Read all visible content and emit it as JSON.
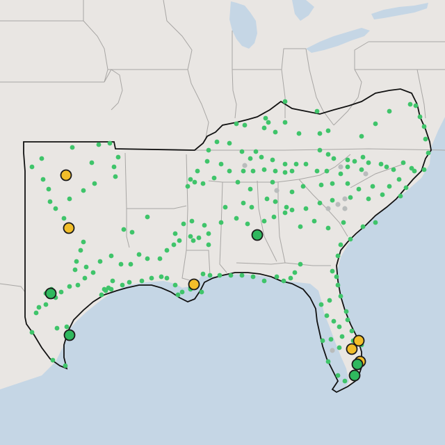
{
  "map": {
    "type": "point-map",
    "basemap": "light-gray-terrain",
    "colors": {
      "land": "#e9e6e3",
      "water": "#c5d6e5",
      "state_border": "#a8a6a4",
      "region_outline": "#111111",
      "small_marker": "#3fc46a",
      "small_marker_inactive": "#b9bcbc",
      "large_marker_green": "#2fb85e",
      "large_marker_yellow": "#f2be2a",
      "large_marker_stroke": "#1a1a1a"
    },
    "legend": null,
    "labels": []
  }
}
